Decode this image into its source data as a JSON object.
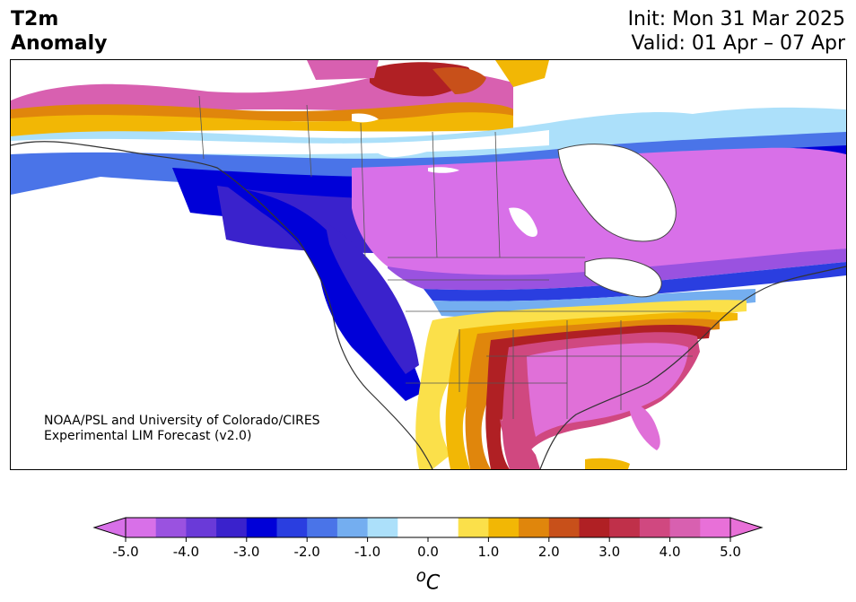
{
  "title": {
    "left_line1": "T2m",
    "left_line2": "Anomaly",
    "init": "Init: Mon 31 Mar 2025",
    "valid": "Valid: 01 Apr – 07 Apr"
  },
  "credit": {
    "line1": "NOAA/PSL and University of Colorado/CIRES",
    "line2": "Experimental LIM Forecast (v2.0)"
  },
  "colorbar": {
    "unit": "oC",
    "unit_base": "C",
    "unit_super": "o",
    "ticks": [
      "-5.0",
      "-4.0",
      "-3.0",
      "-2.0",
      "-1.0",
      "0.0",
      "1.0",
      "2.0",
      "3.0",
      "4.0",
      "5.0"
    ],
    "extend": "both",
    "colors": [
      "#d870e8",
      "#9a52e0",
      "#6a3ad8",
      "#3a22cc",
      "#0000d8",
      "#2a3ee0",
      "#4a74e8",
      "#74aef0",
      "#ace0fa",
      "#ffffff",
      "#ffffff",
      "#fbe04a",
      "#f2b705",
      "#e0860c",
      "#c8501a",
      "#b02024",
      "#c0304a",
      "#d04880",
      "#d860b0",
      "#e870d8"
    ],
    "under_color": "#d870e8",
    "over_color": "#e870d8"
  },
  "map": {
    "region": "North America",
    "field": "2m temperature anomaly",
    "colors": {
      "extreme_cold": "#d870e8",
      "cold_purple": "#8a4ae0",
      "cold_indigo": "#5a30d0",
      "cold_blue": "#0000d8",
      "cool_blue": "#4a74e8",
      "light_blue": "#ace0fa",
      "neutral": "#ffffff",
      "warm_yellow": "#fbe04a",
      "warm_gold": "#f2b705",
      "warm_orange": "#e0860c",
      "warm_red": "#b02024",
      "hot_pink": "#d04880",
      "extreme_warm": "#e070d8"
    }
  }
}
